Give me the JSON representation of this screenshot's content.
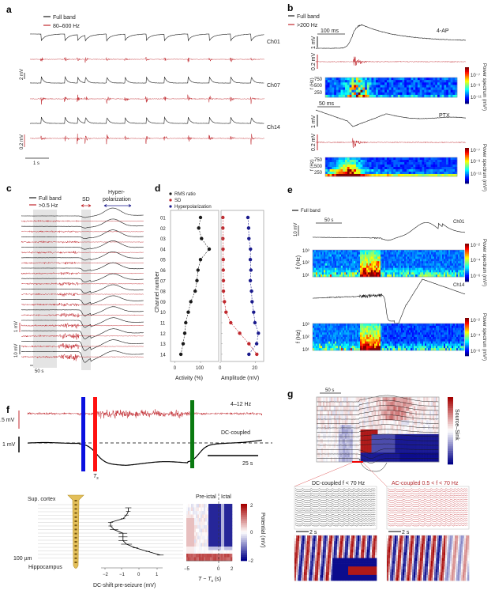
{
  "panel_labels": {
    "a": "a",
    "b": "b",
    "c": "c",
    "d": "d",
    "e": "e",
    "f": "f",
    "g": "g"
  },
  "colors": {
    "full_band": "#1a1a1a",
    "filtered": "#c0272d",
    "hyper": "#1a1a8c",
    "sd": "#c0272d",
    "marker_blue": "#0a10e0",
    "marker_red": "#ff1010",
    "marker_green": "#0a7a10"
  },
  "a": {
    "legend": [
      "Full band",
      "80–600 Hz"
    ],
    "channels": [
      "Ch01",
      "Ch07",
      "Ch14"
    ],
    "scale_full": "2 mV",
    "scale_band": "0.2 mV",
    "time_scale": "1 s"
  },
  "b": {
    "legend": [
      "Full band",
      ">200 Hz"
    ],
    "conditions": [
      "4-AP",
      "PTX"
    ],
    "time_scales": [
      "100 ms",
      "50 ms"
    ],
    "scale_full": "1 mV",
    "scale_band": "0.2 mV",
    "ylabel": "f (Hz)",
    "yticks": [
      "750",
      "500",
      "250"
    ],
    "colorbar_label": "Power spectrum (mV²)",
    "colorbar_ticks": [
      "10⁻⁷",
      "10⁻⁹",
      "10⁻¹¹"
    ],
    "colormap": "jet"
  },
  "c": {
    "legend": [
      "Full band",
      ">0.5 Hz"
    ],
    "sd_label": "SD",
    "hyper_label": [
      "Hyper-",
      "polarization"
    ],
    "scale_band": "1 mV",
    "scale_full": "10 mV",
    "time_scale": "50 s"
  },
  "e": {
    "legend": [
      "Full band"
    ],
    "time_scale": "50 s",
    "scale_full": "10 mV",
    "channels": [
      "Ch01",
      "Ch14"
    ],
    "ylabel": "f (Hz)",
    "yticks": [
      "10³",
      "10²",
      "10¹"
    ],
    "colorbar_label": "Power spectrum (mV²)",
    "colorbar_ticks": [
      "10⁻²",
      "10⁻⁴",
      "10⁻⁶"
    ],
    "colormap": "jet"
  },
  "f": {
    "band_label": "4–12 Hz",
    "dc_label": "DC-coupled",
    "scale_band": ".5 mV",
    "scale_dc": "1 mV",
    "time_scale": "25 s",
    "ts_label": "T",
    "ts_sub": "s",
    "sup_cortex": "Sup. cortex",
    "depth_scale": "100 µm",
    "hippocampus": "Hippocampus",
    "profile_xlabel": "DC-shift pre-seizure (mV)",
    "profile_xticks": [
      "−2",
      "−1",
      "0",
      "1"
    ],
    "heatmap_titles": [
      "Pre-ictal",
      "Ictal"
    ],
    "heatmap_xticks": [
      "−5",
      "0",
      "2"
    ],
    "heatmap_xlabel": "T − T",
    "heatmap_xlabel_sub": "s",
    "heatmap_xlabel_unit": " (s)",
    "colorbar_label": "Potential (mV)",
    "colorbar_ticks": [
      "2",
      "0",
      "−2"
    ],
    "colormap": "blue-white-red"
  },
  "g": {
    "time_scale": "50 s",
    "colorbar_label": "Source–Sink",
    "dc_title": "DC-coupled f < 70 Hz",
    "ac_title": "AC-coupled 0.5 < f < 70 Hz",
    "zoom_time_scale": "2 s",
    "colormap": "blue-white-red"
  },
  "chart_data": [
    {
      "type": "line",
      "panel": "d",
      "categories": [
        "01",
        "02",
        "03",
        "04",
        "05",
        "06",
        "07",
        "08",
        "09",
        "10",
        "11",
        "12",
        "13",
        "14"
      ],
      "ylabel": "Channel number",
      "legend": [
        "RMS ratio",
        "SD",
        "Hyperpolarization"
      ],
      "legend_placement": "top-left",
      "subplots": [
        {
          "xlabel": "Activity (%)",
          "xticks": [
            "0",
            "100"
          ],
          "xlim": [
            0,
            165
          ],
          "series": [
            {
              "name": "RMS ratio",
              "color": "#1a1a1a",
              "values": [
                100,
                93,
                104,
                134,
                100,
                90,
                86,
                79,
                62,
                52,
                42,
                38,
                32,
                23
              ]
            }
          ]
        },
        {
          "xlabel": "Amplitude (mV)",
          "xticks": [
            "0",
            "20"
          ],
          "xlim": [
            0,
            25
          ],
          "series": [
            {
              "name": "SD",
              "color": "#c0272d",
              "values": [
                1.5,
                1.5,
                1.5,
                1.6,
                1.7,
                1.7,
                1.8,
                1.8,
                2.4,
                3.3,
                6,
                11.1,
                16.4,
                20.9
              ]
            },
            {
              "name": "Hyperpolarization",
              "color": "#1a1a8c",
              "values": [
                15.8,
                16.2,
                16.4,
                17.3,
                17.2,
                17.5,
                17.2,
                17.9,
                18.2,
                19.1,
                19.8,
                21.8,
                20.8,
                16.4
              ]
            }
          ]
        }
      ]
    },
    {
      "type": "line",
      "panel": "f",
      "xlabel": "DC-shift pre-seizure (mV)",
      "xlim": [
        -2.3,
        1.4
      ],
      "depth_index": [
        1,
        2,
        3,
        4,
        5,
        6,
        7,
        8,
        9,
        10,
        11,
        12,
        13,
        14
      ],
      "values": [
        -0.6,
        -0.6,
        -0.7,
        -0.9,
        -1.6,
        -1.6,
        -1.4,
        -0.9,
        -0.9,
        -0.9,
        -0.7,
        -0.2,
        0.5,
        1.2
      ]
    }
  ]
}
